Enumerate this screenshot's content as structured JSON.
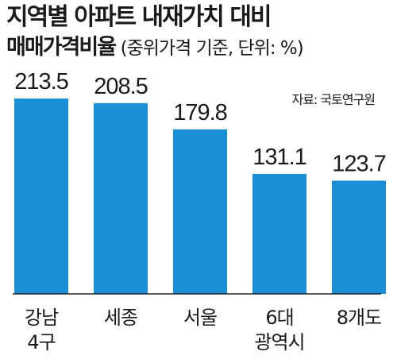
{
  "title": "지역별 아파트 내재가치 대비",
  "subtitle_main": "매매가격비율",
  "subtitle_paren": "(중위가격 기준, 단위: %)",
  "source": "자료: 국토연구원",
  "colors": {
    "bar": "#1b8fd6",
    "axis": "#222222"
  },
  "chart_data": {
    "type": "bar",
    "title": "지역별 아파트 내재가치 대비 매매가격비율",
    "subtitle": "(중위가격 기준, 단위: %)",
    "categories": [
      "강남 4구",
      "세종",
      "서울",
      "6대 광역시",
      "8개도"
    ],
    "category_lines": [
      [
        "강남",
        "4구"
      ],
      [
        "세종"
      ],
      [
        "서울"
      ],
      [
        "6대",
        "광역시"
      ],
      [
        "8개도"
      ]
    ],
    "value_labels": [
      "213.5",
      "208.5",
      "179.8",
      "131.1",
      "123.7"
    ],
    "values": [
      213.5,
      208.5,
      179.8,
      131.1,
      123.7
    ],
    "ylim": [
      0,
      250
    ],
    "grid": false,
    "legend": "none"
  }
}
